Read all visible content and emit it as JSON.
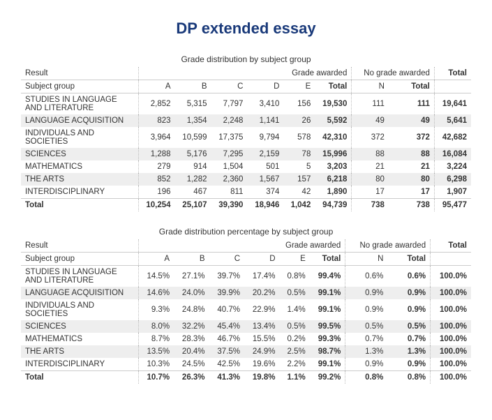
{
  "page_title": "DP extended essay",
  "table1": {
    "title": "Grade distribution by subject group",
    "header_result": "Result",
    "header_grade_awarded": "Grade awarded",
    "header_no_grade": "No grade awarded",
    "header_total": "Total",
    "header_subject_group": "Subject group",
    "cols": {
      "A": "A",
      "B": "B",
      "C": "C",
      "D": "D",
      "E": "E",
      "Total1": "Total",
      "N": "N",
      "Total2": "Total"
    },
    "rows": [
      {
        "subject": "STUDIES IN LANGUAGE AND LITERATURE",
        "A": "2,852",
        "B": "5,315",
        "C": "7,797",
        "D": "3,410",
        "E": "156",
        "T1": "19,530",
        "N": "111",
        "T2": "111",
        "G": "19,641"
      },
      {
        "subject": "LANGUAGE ACQUISITION",
        "A": "823",
        "B": "1,354",
        "C": "2,248",
        "D": "1,141",
        "E": "26",
        "T1": "5,592",
        "N": "49",
        "T2": "49",
        "G": "5,641"
      },
      {
        "subject": "INDIVIDUALS AND SOCIETIES",
        "A": "3,964",
        "B": "10,599",
        "C": "17,375",
        "D": "9,794",
        "E": "578",
        "T1": "42,310",
        "N": "372",
        "T2": "372",
        "G": "42,682"
      },
      {
        "subject": "SCIENCES",
        "A": "1,288",
        "B": "5,176",
        "C": "7,295",
        "D": "2,159",
        "E": "78",
        "T1": "15,996",
        "N": "88",
        "T2": "88",
        "G": "16,084"
      },
      {
        "subject": "MATHEMATICS",
        "A": "279",
        "B": "914",
        "C": "1,504",
        "D": "501",
        "E": "5",
        "T1": "3,203",
        "N": "21",
        "T2": "21",
        "G": "3,224"
      },
      {
        "subject": "THE ARTS",
        "A": "852",
        "B": "1,282",
        "C": "2,360",
        "D": "1,567",
        "E": "157",
        "T1": "6,218",
        "N": "80",
        "T2": "80",
        "G": "6,298"
      },
      {
        "subject": "INTERDISCIPLINARY",
        "A": "196",
        "B": "467",
        "C": "811",
        "D": "374",
        "E": "42",
        "T1": "1,890",
        "N": "17",
        "T2": "17",
        "G": "1,907"
      }
    ],
    "total": {
      "subject": "Total",
      "A": "10,254",
      "B": "25,107",
      "C": "39,390",
      "D": "18,946",
      "E": "1,042",
      "T1": "94,739",
      "N": "738",
      "T2": "738",
      "G": "95,477"
    }
  },
  "table2": {
    "title": "Grade distribution percentage by subject group",
    "header_result": "Result",
    "header_grade_awarded": "Grade awarded",
    "header_no_grade": "No grade awarded",
    "header_total": "Total",
    "header_subject_group": "Subject group",
    "cols": {
      "A": "A",
      "B": "B",
      "C": "C",
      "D": "D",
      "E": "E",
      "Total1": "Total",
      "N": "N",
      "Total2": "Total"
    },
    "rows": [
      {
        "subject": "STUDIES IN LANGUAGE AND LITERATURE",
        "A": "14.5%",
        "B": "27.1%",
        "C": "39.7%",
        "D": "17.4%",
        "E": "0.8%",
        "T1": "99.4%",
        "N": "0.6%",
        "T2": "0.6%",
        "G": "100.0%"
      },
      {
        "subject": "LANGUAGE ACQUISITION",
        "A": "14.6%",
        "B": "24.0%",
        "C": "39.9%",
        "D": "20.2%",
        "E": "0.5%",
        "T1": "99.1%",
        "N": "0.9%",
        "T2": "0.9%",
        "G": "100.0%"
      },
      {
        "subject": "INDIVIDUALS AND SOCIETIES",
        "A": "9.3%",
        "B": "24.8%",
        "C": "40.7%",
        "D": "22.9%",
        "E": "1.4%",
        "T1": "99.1%",
        "N": "0.9%",
        "T2": "0.9%",
        "G": "100.0%"
      },
      {
        "subject": "SCIENCES",
        "A": "8.0%",
        "B": "32.2%",
        "C": "45.4%",
        "D": "13.4%",
        "E": "0.5%",
        "T1": "99.5%",
        "N": "0.5%",
        "T2": "0.5%",
        "G": "100.0%"
      },
      {
        "subject": "MATHEMATICS",
        "A": "8.7%",
        "B": "28.3%",
        "C": "46.7%",
        "D": "15.5%",
        "E": "0.2%",
        "T1": "99.3%",
        "N": "0.7%",
        "T2": "0.7%",
        "G": "100.0%"
      },
      {
        "subject": "THE ARTS",
        "A": "13.5%",
        "B": "20.4%",
        "C": "37.5%",
        "D": "24.9%",
        "E": "2.5%",
        "T1": "98.7%",
        "N": "1.3%",
        "T2": "1.3%",
        "G": "100.0%"
      },
      {
        "subject": "INTERDISCIPLINARY",
        "A": "10.3%",
        "B": "24.5%",
        "C": "42.5%",
        "D": "19.6%",
        "E": "2.2%",
        "T1": "99.1%",
        "N": "0.9%",
        "T2": "0.9%",
        "G": "100.0%"
      }
    ],
    "total": {
      "subject": "Total",
      "A": "10.7%",
      "B": "26.3%",
      "C": "41.3%",
      "D": "19.8%",
      "E": "1.1%",
      "T1": "99.2%",
      "N": "0.8%",
      "T2": "0.8%",
      "G": "100.0%"
    }
  }
}
